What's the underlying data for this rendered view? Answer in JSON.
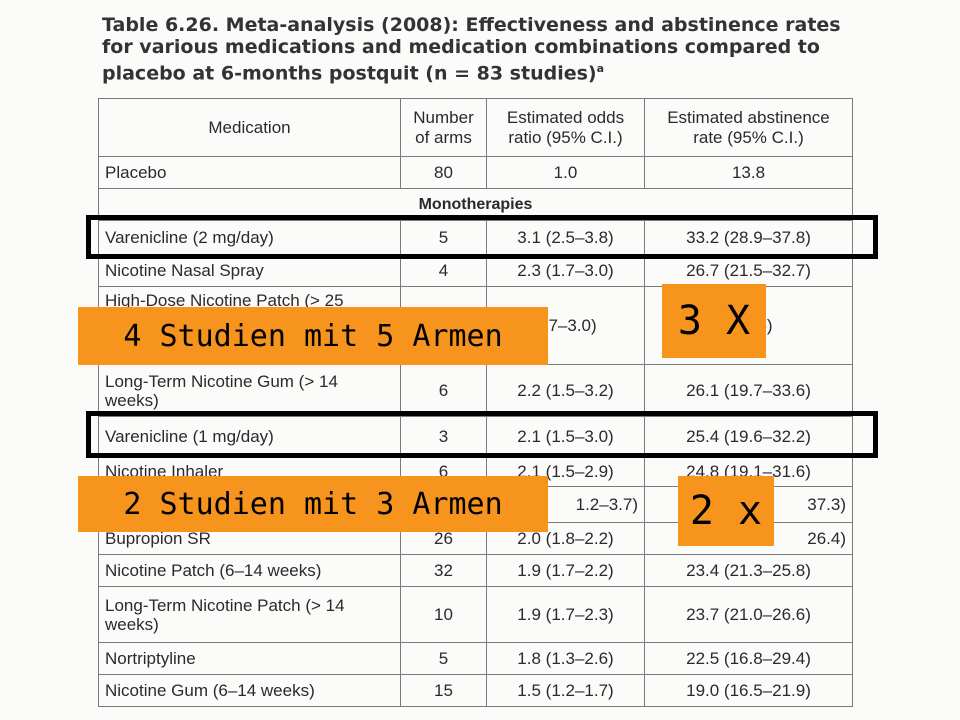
{
  "title": {
    "text": "Table 6.26. Meta-analysis (2008): Effectiveness and abstinence rates for various medications and medication combinations compared to placebo at 6-months postquit (n = 83 studies)",
    "footnote_mark": "a"
  },
  "table": {
    "headers": [
      "Medication",
      "Number of arms",
      "Estimated odds ratio (95% C.I.)",
      "Estimated abstinence rate (95% C.I.)"
    ],
    "placebo": [
      "Placebo",
      "80",
      "1.0",
      "13.8"
    ],
    "section": "Monotherapies",
    "rows": [
      [
        "Varenicline (2 mg/day)",
        "5",
        "3.1 (2.5–3.8)",
        "33.2 (28.9–37.8)"
      ],
      [
        "Nicotine Nasal Spray",
        "4",
        "2.3 (1.7–3.0)",
        "26.7 (21.5–32.7)"
      ],
      [
        "High-Dose Nicotine Patch (> 25",
        "",
        "1.7–3.0)",
        "–32.5)"
      ],
      [
        "Long-Term Nicotine Gum (> 14 weeks)",
        "6",
        "2.2 (1.5–3.2)",
        "26.1 (19.7–33.6)"
      ],
      [
        "Varenicline (1 mg/day)",
        "3",
        "2.1 (1.5–3.0)",
        "25.4 (19.6–32.2)"
      ],
      [
        "Nicotine Inhaler",
        "6",
        "2.1 (1.5–2.9)",
        "24.8 (19.1–31.6)"
      ],
      [
        "",
        "",
        "1.2–3.7)",
        "37.3)"
      ],
      [
        "Bupropion SR",
        "26",
        "2.0 (1.8–2.2)",
        "26.4)"
      ],
      [
        "Nicotine Patch (6–14 weeks)",
        "32",
        "1.9 (1.7–2.2)",
        "23.4 (21.3–25.8)"
      ],
      [
        "Long-Term Nicotine Patch (> 14 weeks)",
        "10",
        "1.9 (1.7–2.3)",
        "23.7 (21.0–26.6)"
      ],
      [
        "Nortriptyline",
        "5",
        "1.8 (1.3–2.6)",
        "22.5 (16.8–29.4)"
      ],
      [
        "Nicotine Gum (6–14 weeks)",
        "15",
        "1.5 (1.2–1.7)",
        "19.0 (16.5–21.9)"
      ]
    ]
  },
  "annotations": {
    "label_a": "4 Studien mit 5 Armen",
    "label_b": "2 Studien mit 3 Armen",
    "label_c": "3 X",
    "label_d": "2 x"
  },
  "colors": {
    "annotation_bg": "#f7941d",
    "highlight_border": "#000000"
  }
}
